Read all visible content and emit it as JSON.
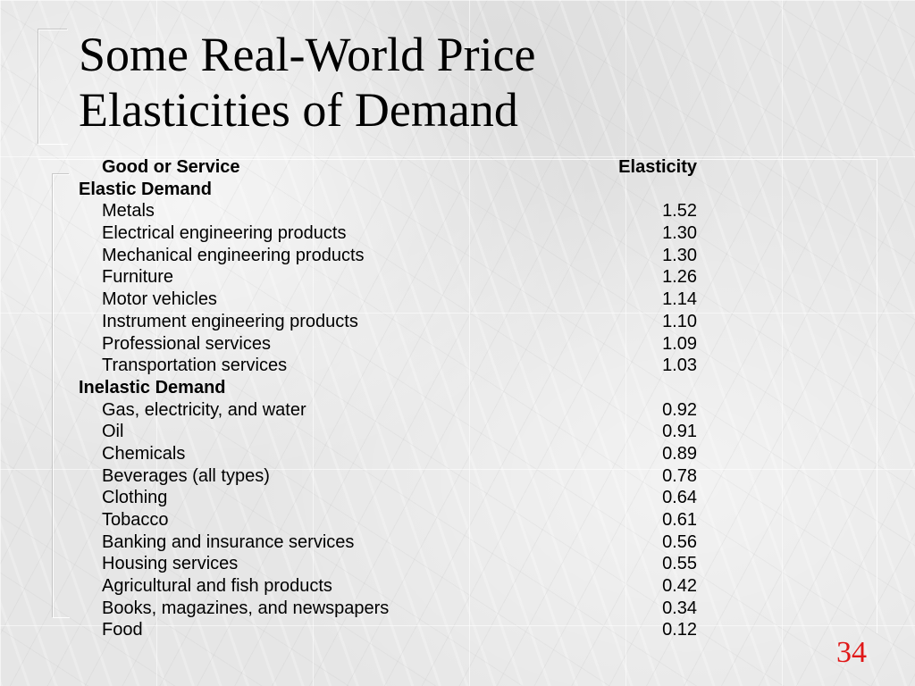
{
  "slide": {
    "title_line1": "Some Real-World Price",
    "title_line2": "Elasticities of Demand",
    "page_number": "34",
    "page_number_color": "#e01818"
  },
  "table": {
    "header": {
      "name": "Good or Service",
      "value": "Elasticity"
    },
    "sections": [
      {
        "label": "Elastic Demand",
        "rows": [
          {
            "name": "Metals",
            "value": "1.52"
          },
          {
            "name": "Electrical engineering products",
            "value": "1.30"
          },
          {
            "name": "Mechanical engineering products",
            "value": "1.30"
          },
          {
            "name": "Furniture",
            "value": "1.26"
          },
          {
            "name": "Motor vehicles",
            "value": "1.14"
          },
          {
            "name": "Instrument engineering products",
            "value": "1.10"
          },
          {
            "name": "Professional services",
            "value": "1.09"
          },
          {
            "name": "Transportation services",
            "value": "1.03"
          }
        ]
      },
      {
        "label": "Inelastic Demand",
        "rows": [
          {
            "name": "Gas, electricity, and water",
            "value": "0.92"
          },
          {
            "name": "Oil",
            "value": "0.91"
          },
          {
            "name": "Chemicals",
            "value": "0.89"
          },
          {
            "name": "Beverages (all types)",
            "value": "0.78"
          },
          {
            "name": "Clothing",
            "value": "0.64"
          },
          {
            "name": "Tobacco",
            "value": "0.61"
          },
          {
            "name": "Banking and insurance services",
            "value": "0.56"
          },
          {
            "name": "Housing services",
            "value": "0.55"
          },
          {
            "name": "Agricultural and fish products",
            "value": "0.42"
          },
          {
            "name": "Books, magazines, and newspapers",
            "value": "0.34"
          },
          {
            "name": "Food",
            "value": "0.12"
          }
        ]
      }
    ]
  }
}
